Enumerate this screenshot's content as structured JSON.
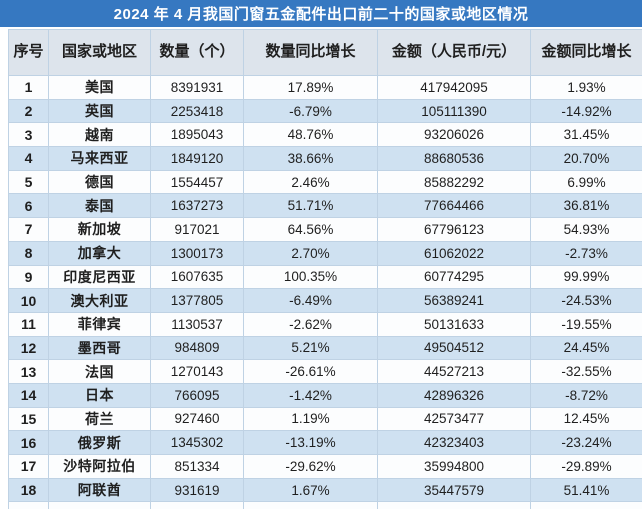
{
  "title": "2024 年 4 月我国门窗五金配件出口前二十的国家或地区情况",
  "colors": {
    "title_bar": "#3678c1",
    "title_text": "#ffffff",
    "header_bg": "#dde4ec",
    "row_even_bg": "#cfe1f1",
    "row_odd_bg": "#fcfdfe",
    "border": "#bfd2e4",
    "text": "#1f1f1f"
  },
  "table": {
    "headers": [
      "序号",
      "国家或地区",
      "数量（个）",
      "数量同比增长",
      "金额（人民币/元）",
      "金额同比增长"
    ],
    "rows": [
      {
        "rank": "1",
        "country": "美国",
        "qty": "8391931",
        "qty_yoy": "17.89%",
        "amount": "417942095",
        "amount_yoy": "1.93%"
      },
      {
        "rank": "2",
        "country": "英国",
        "qty": "2253418",
        "qty_yoy": "-6.79%",
        "amount": "105111390",
        "amount_yoy": "-14.92%"
      },
      {
        "rank": "3",
        "country": "越南",
        "qty": "1895043",
        "qty_yoy": "48.76%",
        "amount": "93206026",
        "amount_yoy": "31.45%"
      },
      {
        "rank": "4",
        "country": "马来西亚",
        "qty": "1849120",
        "qty_yoy": "38.66%",
        "amount": "88680536",
        "amount_yoy": "20.70%"
      },
      {
        "rank": "5",
        "country": "德国",
        "qty": "1554457",
        "qty_yoy": "2.46%",
        "amount": "85882292",
        "amount_yoy": "6.99%"
      },
      {
        "rank": "6",
        "country": "泰国",
        "qty": "1637273",
        "qty_yoy": "51.71%",
        "amount": "77664466",
        "amount_yoy": "36.81%"
      },
      {
        "rank": "7",
        "country": "新加坡",
        "qty": "917021",
        "qty_yoy": "64.56%",
        "amount": "67796123",
        "amount_yoy": "54.93%"
      },
      {
        "rank": "8",
        "country": "加拿大",
        "qty": "1300173",
        "qty_yoy": "2.70%",
        "amount": "61062022",
        "amount_yoy": "-2.73%"
      },
      {
        "rank": "9",
        "country": "印度尼西亚",
        "qty": "1607635",
        "qty_yoy": "100.35%",
        "amount": "60774295",
        "amount_yoy": "99.99%"
      },
      {
        "rank": "10",
        "country": "澳大利亚",
        "qty": "1377805",
        "qty_yoy": "-6.49%",
        "amount": "56389241",
        "amount_yoy": "-24.53%"
      },
      {
        "rank": "11",
        "country": "菲律宾",
        "qty": "1130537",
        "qty_yoy": "-2.62%",
        "amount": "50131633",
        "amount_yoy": "-19.55%"
      },
      {
        "rank": "12",
        "country": "墨西哥",
        "qty": "984809",
        "qty_yoy": "5.21%",
        "amount": "49504512",
        "amount_yoy": "24.45%"
      },
      {
        "rank": "13",
        "country": "法国",
        "qty": "1270143",
        "qty_yoy": "-26.61%",
        "amount": "44527213",
        "amount_yoy": "-32.55%"
      },
      {
        "rank": "14",
        "country": "日本",
        "qty": "766095",
        "qty_yoy": "-1.42%",
        "amount": "42896326",
        "amount_yoy": "-8.72%"
      },
      {
        "rank": "15",
        "country": "荷兰",
        "qty": "927460",
        "qty_yoy": "1.19%",
        "amount": "42573477",
        "amount_yoy": "12.45%"
      },
      {
        "rank": "16",
        "country": "俄罗斯",
        "qty": "1345302",
        "qty_yoy": "-13.19%",
        "amount": "42323403",
        "amount_yoy": "-23.24%"
      },
      {
        "rank": "17",
        "country": "沙特阿拉伯",
        "qty": "851334",
        "qty_yoy": "-29.62%",
        "amount": "35994800",
        "amount_yoy": "-29.89%"
      },
      {
        "rank": "18",
        "country": "阿联酋",
        "qty": "931619",
        "qty_yoy": "1.67%",
        "amount": "35447579",
        "amount_yoy": "51.41%"
      }
    ]
  }
}
